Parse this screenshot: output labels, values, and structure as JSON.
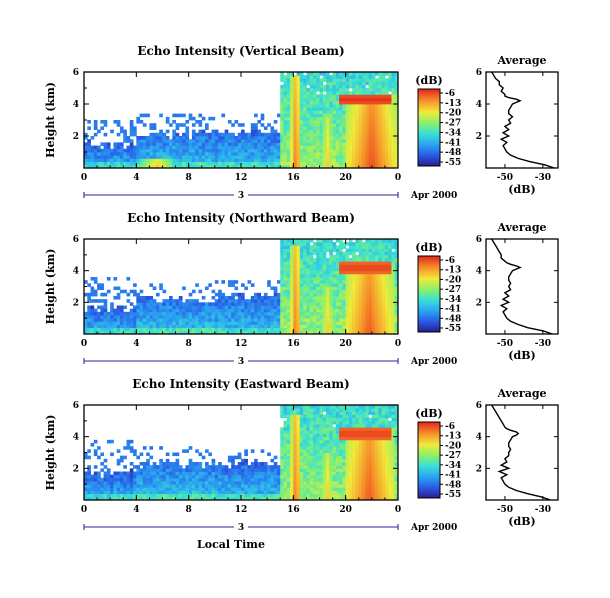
{
  "chart_data": [
    {
      "type": "heatmap",
      "title": "Echo Intensity (Vertical Beam)",
      "ylabel": "Height (km)",
      "xlim": [
        0,
        24
      ],
      "ylim": [
        0,
        6
      ],
      "x_ticks": [
        "0",
        "4",
        "8",
        "12",
        "16",
        "20",
        "0"
      ],
      "y_ticks": [
        "2",
        "4",
        "6"
      ],
      "day_label": "3",
      "month_label": "Apr 2000",
      "colorbar": {
        "unit": "(dB)",
        "ticks": [
          "-6",
          "-13",
          "-20",
          "-27",
          "-34",
          "-41",
          "-48",
          "-55"
        ],
        "range": [
          -58,
          -3
        ]
      },
      "bands": [
        {
          "t0": 0,
          "t1": 4,
          "base_top": 1.5,
          "strat_top": 3.0,
          "strat_density": 0.15,
          "base_db": -40
        },
        {
          "t0": 4,
          "t1": 10,
          "base_top": 2.1,
          "strat_top": 3.4,
          "strat_density": 0.12,
          "base_db": -38
        },
        {
          "t0": 10,
          "t1": 15,
          "base_top": 2.3,
          "strat_top": 3.5,
          "strat_density": 0.1,
          "base_db": -39
        },
        {
          "t0": 15,
          "t1": 24,
          "base_top": 6.0,
          "strat_top": 6.0,
          "strat_density": 0,
          "base_db": -34
        }
      ],
      "strong_echoes": [
        {
          "t_center": 16.2,
          "width": 0.8,
          "top": 5.8,
          "db": -8
        },
        {
          "t_center": 22.0,
          "width": 3.8,
          "top": 4.6,
          "db": -6
        },
        {
          "t_center": 18.6,
          "width": 1.0,
          "top": 3.2,
          "db": -16
        },
        {
          "t_center": 5.6,
          "width": 2.5,
          "top": 0.6,
          "db": -15
        }
      ],
      "bright_layer": {
        "t0": 19.5,
        "t1": 23.5,
        "height": 4.3,
        "db": -4
      },
      "profile": {
        "title": "Average",
        "xlabel": "(dB)",
        "x_ticks": [
          "-50",
          "-30"
        ],
        "xlim": [
          -60,
          -22
        ],
        "y_ticks": [
          "2",
          "4",
          "6"
        ],
        "height_km": [
          0.0,
          0.2,
          0.4,
          0.6,
          0.8,
          1.0,
          1.2,
          1.4,
          1.6,
          1.8,
          2.0,
          2.2,
          2.4,
          2.6,
          2.8,
          3.0,
          3.2,
          3.4,
          3.6,
          3.8,
          4.0,
          4.1,
          4.2,
          4.3,
          4.4,
          4.5,
          4.6,
          4.8,
          5.0,
          5.2,
          5.4,
          5.6,
          5.8,
          6.0
        ],
        "db": [
          -24,
          -29,
          -37,
          -43,
          -47,
          -49,
          -50,
          -51,
          -49,
          -52,
          -48,
          -51,
          -48,
          -50,
          -47,
          -48,
          -46,
          -48,
          -48,
          -47,
          -46,
          -44,
          -42,
          -44,
          -48,
          -50,
          -50,
          -52,
          -51,
          -53,
          -53,
          -55,
          -56,
          -57
        ]
      }
    },
    {
      "type": "heatmap",
      "title": "Echo Intensity (Northward Beam)",
      "ylabel": "Height (km)",
      "xlim": [
        0,
        24
      ],
      "ylim": [
        0,
        6
      ],
      "x_ticks": [
        "0",
        "4",
        "8",
        "12",
        "16",
        "20",
        "0"
      ],
      "y_ticks": [
        "2",
        "4",
        "6"
      ],
      "day_label": "3",
      "month_label": "Apr 2000",
      "colorbar": {
        "unit": "(dB)",
        "ticks": [
          "-6",
          "-13",
          "-20",
          "-27",
          "-34",
          "-41",
          "-48",
          "-55"
        ],
        "range": [
          -58,
          -3
        ]
      },
      "bands": [
        {
          "t0": 0,
          "t1": 4,
          "base_top": 1.6,
          "strat_top": 3.6,
          "strat_density": 0.12,
          "base_db": -40
        },
        {
          "t0": 4,
          "t1": 10,
          "base_top": 2.2,
          "strat_top": 3.2,
          "strat_density": 0.1,
          "base_db": -38
        },
        {
          "t0": 10,
          "t1": 15,
          "base_top": 2.4,
          "strat_top": 3.4,
          "strat_density": 0.1,
          "base_db": -39
        },
        {
          "t0": 15,
          "t1": 24,
          "base_top": 6.0,
          "strat_top": 6.0,
          "strat_density": 0,
          "base_db": -34
        }
      ],
      "strong_echoes": [
        {
          "t_center": 16.2,
          "width": 0.8,
          "top": 5.6,
          "db": -8
        },
        {
          "t_center": 21.8,
          "width": 3.8,
          "top": 4.5,
          "db": -7
        },
        {
          "t_center": 18.6,
          "width": 1.0,
          "top": 3.0,
          "db": -16
        }
      ],
      "bright_layer": {
        "t0": 19.5,
        "t1": 23.5,
        "height": 4.2,
        "db": -5
      },
      "profile": {
        "title": "Average",
        "xlabel": "(dB)",
        "x_ticks": [
          "-50",
          "-30"
        ],
        "xlim": [
          -60,
          -22
        ],
        "y_ticks": [
          "2",
          "4",
          "6"
        ],
        "height_km": [
          0.0,
          0.2,
          0.4,
          0.6,
          0.8,
          1.0,
          1.2,
          1.4,
          1.6,
          1.8,
          2.0,
          2.2,
          2.4,
          2.6,
          2.8,
          3.0,
          3.2,
          3.4,
          3.6,
          3.8,
          4.0,
          4.1,
          4.2,
          4.3,
          4.4,
          4.5,
          4.6,
          4.8,
          5.0,
          5.2,
          5.4,
          5.6,
          5.8,
          6.0
        ],
        "db": [
          -25,
          -30,
          -38,
          -43,
          -47,
          -49,
          -50,
          -51,
          -49,
          -52,
          -48,
          -51,
          -48,
          -50,
          -47,
          -48,
          -47,
          -48,
          -48,
          -47,
          -46,
          -44,
          -42,
          -44,
          -47,
          -49,
          -50,
          -52,
          -52,
          -53,
          -54,
          -55,
          -56,
          -57
        ]
      }
    },
    {
      "type": "heatmap",
      "title": "Echo Intensity (Eastward Beam)",
      "ylabel": "Height (km)",
      "xlim": [
        0,
        24
      ],
      "ylim": [
        0,
        6
      ],
      "x_ticks": [
        "0",
        "4",
        "8",
        "12",
        "16",
        "20",
        "0"
      ],
      "y_ticks": [
        "2",
        "4",
        "6"
      ],
      "day_label": "3",
      "month_label": "Apr 2000",
      "xlabel": "Local Time",
      "colorbar": {
        "unit": "(dB)",
        "ticks": [
          "-6",
          "-13",
          "-20",
          "-27",
          "-34",
          "-41",
          "-48",
          "-55"
        ],
        "range": [
          -58,
          -3
        ]
      },
      "bands": [
        {
          "t0": 0,
          "t1": 4,
          "base_top": 1.7,
          "strat_top": 3.8,
          "strat_density": 0.14,
          "base_db": -40
        },
        {
          "t0": 4,
          "t1": 10,
          "base_top": 2.3,
          "strat_top": 3.4,
          "strat_density": 0.1,
          "base_db": -38
        },
        {
          "t0": 10,
          "t1": 15,
          "base_top": 2.3,
          "strat_top": 3.2,
          "strat_density": 0.08,
          "base_db": -39
        },
        {
          "t0": 15,
          "t1": 24,
          "base_top": 6.0,
          "strat_top": 6.0,
          "strat_density": 0,
          "base_db": -34
        }
      ],
      "strong_echoes": [
        {
          "t_center": 16.2,
          "width": 0.8,
          "top": 5.5,
          "db": -8
        },
        {
          "t_center": 21.8,
          "width": 3.8,
          "top": 4.6,
          "db": -7
        },
        {
          "t_center": 18.6,
          "width": 1.0,
          "top": 3.1,
          "db": -16
        }
      ],
      "bright_layer": {
        "t0": 19.5,
        "t1": 23.5,
        "height": 4.2,
        "db": -5
      },
      "profile": {
        "title": "Average",
        "xlabel": "(dB)",
        "x_ticks": [
          "-50",
          "-30"
        ],
        "xlim": [
          -60,
          -22
        ],
        "y_ticks": [
          "2",
          "4",
          "6"
        ],
        "height_km": [
          0.0,
          0.2,
          0.4,
          0.6,
          0.8,
          1.0,
          1.2,
          1.4,
          1.6,
          1.8,
          2.0,
          2.2,
          2.4,
          2.6,
          2.8,
          3.0,
          3.2,
          3.4,
          3.6,
          3.8,
          4.0,
          4.1,
          4.2,
          4.3,
          4.4,
          4.5,
          4.6,
          4.8,
          5.0,
          5.2,
          5.4,
          5.6,
          5.8,
          6.0
        ],
        "db": [
          -26,
          -31,
          -38,
          -44,
          -48,
          -50,
          -51,
          -52,
          -49,
          -53,
          -48,
          -52,
          -49,
          -50,
          -48,
          -48,
          -47,
          -48,
          -48,
          -47,
          -46,
          -44,
          -43,
          -44,
          -47,
          -49,
          -50,
          -51,
          -52,
          -53,
          -54,
          -55,
          -56,
          -57
        ]
      }
    }
  ]
}
